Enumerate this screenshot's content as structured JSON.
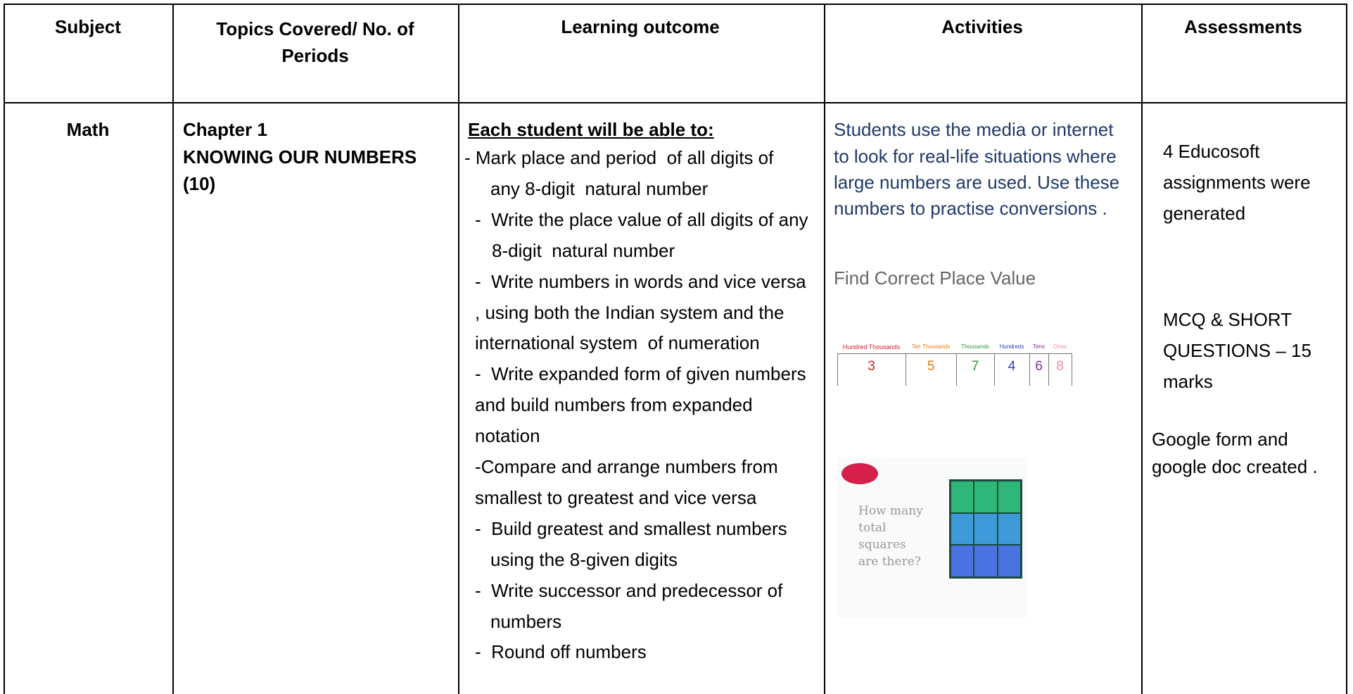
{
  "table": {
    "header": [
      "Subject",
      "Topics Covered/ No. of Periods",
      "Learning outcome",
      "Activities",
      "Assessments"
    ],
    "rows": [
      {
        "subject": "Math",
        "topics": [
          "Chapter 1",
          "KNOWING OUR NUMBERS",
          "(10)"
        ],
        "learning_outcome": {
          "heading": "Each student will be able to:",
          "lines": [
            "- Mark place and period  of all digits of",
            "any 8-digit  natural number",
            "-  Write the place value of all digits of any",
            "8-digit  natural number",
            "-  Write numbers in words and vice versa",
            ", using both the Indian system and the",
            "international system  of numeration",
            "-  Write expanded form of given numbers",
            "and build numbers from expanded",
            "notation",
            "-Compare and arrange numbers from",
            "smallest to greatest and vice versa",
            "-  Build greatest and smallest numbers",
            "using the 8-given digits",
            "-  Write successor and predecessor of",
            "numbers",
            "-  Round off numbers"
          ]
        },
        "activities": {
          "lines": [
            "Students use the media or internet",
            "to look for real-life situations where",
            "large numbers are used. Use these",
            "numbers to practise conversions ."
          ],
          "caption": "Find Correct Place Value",
          "place_value_chart": {
            "headers": [
              "Hundred Thousands",
              "Ten Thousands",
              "Thousands",
              "Hundreds",
              "Tens",
              "Ones"
            ],
            "digits": [
              "3",
              "5",
              "7",
              "4",
              "6",
              "8"
            ]
          },
          "image_text": "How many total squares are there?"
        },
        "assessments": [
          [
            "4 Educosoft",
            "assignments were",
            "generated"
          ],
          [
            "MCQ & SHORT",
            "QUESTIONS – 15",
            "marks"
          ],
          [
            "Google form and",
            "google doc created ."
          ]
        ]
      }
    ]
  }
}
